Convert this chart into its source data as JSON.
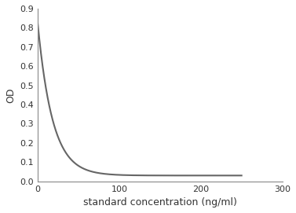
{
  "title": "",
  "xlabel": "standard concentration (ng/ml)",
  "ylabel": "OD",
  "xlim": [
    0,
    300
  ],
  "ylim": [
    0,
    0.9
  ],
  "xticks": [
    0,
    100,
    200,
    300
  ],
  "yticks": [
    0,
    0.1,
    0.2,
    0.3,
    0.4,
    0.5,
    0.6,
    0.7,
    0.8,
    0.9
  ],
  "line_color": "#666666",
  "line_width": 1.5,
  "background_color": "#ffffff",
  "curve_x_start": 0.001,
  "curve_x_end": 250,
  "curve_a": 0.82,
  "curve_b": 0.03,
  "curve_k": 0.055,
  "figsize": [
    3.77,
    2.71
  ],
  "dpi": 100
}
